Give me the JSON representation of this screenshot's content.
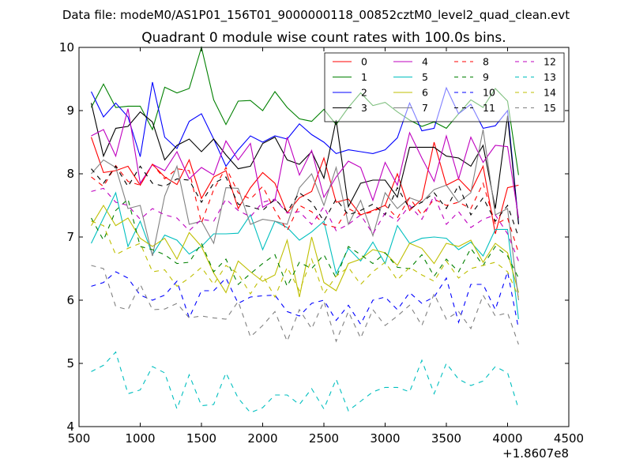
{
  "figure": {
    "suptitle": "Data file: modeM0/AS1P01_156T01_9000000118_00852cztM0_level2_quad_clean.evt"
  },
  "chart_data": {
    "type": "line",
    "title": "Quadrant 0 module wise count rates with 100.0s bins.",
    "xlabel": "",
    "ylabel": "",
    "x_offset_label": "+1.8607e8",
    "xlim": [
      500,
      4500
    ],
    "ylim": [
      4,
      10
    ],
    "x_ticks": [
      500,
      1000,
      1500,
      2000,
      2500,
      3000,
      3500,
      4000,
      4500
    ],
    "y_ticks": [
      4,
      5,
      6,
      7,
      8,
      9,
      10
    ],
    "grid": false,
    "legend": {
      "placement": "top-right",
      "columns": 4
    },
    "x": [
      600,
      700,
      800,
      900,
      1000,
      1100,
      1200,
      1300,
      1400,
      1500,
      1600,
      1700,
      1800,
      1900,
      2000,
      2100,
      2200,
      2300,
      2400,
      2500,
      2600,
      2700,
      2800,
      2900,
      3000,
      3100,
      3200,
      3300,
      3400,
      3500,
      3600,
      3700,
      3800,
      3900,
      4000,
      4090
    ],
    "series": [
      {
        "name": "0",
        "color": "#ff0000",
        "dash": "solid",
        "values": [
          8.58,
          8.02,
          8.05,
          8.12,
          7.82,
          8.15,
          7.95,
          7.83,
          8.22,
          7.61,
          7.95,
          8.05,
          7.45,
          7.78,
          8.02,
          7.85,
          7.38,
          7.62,
          7.72,
          8.25,
          7.55,
          7.6,
          7.35,
          7.42,
          7.5,
          8.0,
          7.42,
          7.6,
          8.5,
          7.82,
          7.92,
          7.72,
          8.12,
          7.05,
          7.78,
          7.82
        ]
      },
      {
        "name": "1",
        "color": "#008000",
        "dash": "solid",
        "values": [
          9.05,
          9.42,
          9.05,
          9.07,
          9.07,
          8.7,
          9.37,
          9.28,
          9.35,
          10.0,
          9.17,
          8.78,
          9.15,
          9.16,
          9.0,
          9.3,
          9.05,
          8.87,
          8.83,
          9.02,
          8.78,
          9.05,
          9.28,
          9.08,
          9.13,
          8.98,
          8.85,
          8.75,
          8.82,
          8.72,
          8.95,
          9.17,
          9.05,
          9.35,
          9.15,
          7.98
        ]
      },
      {
        "name": "2",
        "color": "#0000ff",
        "dash": "solid",
        "values": [
          9.3,
          8.9,
          9.12,
          8.9,
          8.27,
          9.45,
          8.58,
          8.4,
          8.83,
          8.95,
          8.55,
          8.12,
          8.38,
          8.6,
          8.5,
          8.6,
          8.55,
          8.79,
          8.62,
          8.5,
          8.32,
          8.38,
          8.35,
          8.32,
          8.38,
          8.57,
          9.12,
          8.68,
          8.72,
          9.36,
          8.95,
          9.1,
          8.72,
          8.76,
          9.0,
          7.22
        ]
      },
      {
        "name": "3",
        "color": "#000000",
        "dash": "solid",
        "values": [
          9.12,
          8.28,
          8.72,
          8.75,
          8.98,
          8.82,
          8.22,
          8.45,
          8.55,
          8.35,
          8.55,
          8.3,
          8.08,
          8.12,
          8.48,
          8.58,
          8.22,
          8.15,
          8.35,
          7.93,
          8.85,
          7.48,
          7.85,
          7.9,
          7.9,
          7.63,
          8.42,
          8.42,
          8.42,
          8.28,
          8.25,
          8.12,
          8.45,
          7.45,
          8.92,
          7.2
        ]
      },
      {
        "name": "4",
        "color": "#bf00bf",
        "dash": "solid",
        "values": [
          8.6,
          8.7,
          8.28,
          9.03,
          7.85,
          8.15,
          8.05,
          8.35,
          7.92,
          8.1,
          7.98,
          8.52,
          8.22,
          8.48,
          7.47,
          7.58,
          8.58,
          7.98,
          8.37,
          7.63,
          7.95,
          8.2,
          8.1,
          7.58,
          8.18,
          7.82,
          8.65,
          8.25,
          7.88,
          8.6,
          7.92,
          8.58,
          8.18,
          8.45,
          8.43,
          7.3
        ]
      },
      {
        "name": "5",
        "color": "#00bfbf",
        "dash": "solid",
        "values": [
          6.9,
          7.3,
          7.7,
          6.85,
          7.25,
          6.72,
          7.03,
          6.95,
          6.73,
          6.85,
          7.05,
          7.05,
          7.06,
          7.35,
          6.8,
          7.25,
          7.15,
          6.95,
          7.08,
          7.25,
          6.42,
          6.82,
          6.62,
          6.92,
          6.58,
          7.18,
          6.9,
          6.98,
          7.0,
          6.98,
          6.8,
          6.92,
          6.7,
          7.12,
          7.12,
          5.7
        ]
      },
      {
        "name": "6",
        "color": "#bfbf00",
        "dash": "solid",
        "values": [
          7.18,
          7.5,
          7.18,
          7.3,
          6.98,
          6.85,
          6.98,
          6.65,
          7.07,
          6.85,
          6.43,
          6.12,
          6.62,
          6.45,
          6.3,
          6.4,
          6.95,
          6.05,
          7.0,
          6.28,
          6.15,
          6.58,
          6.65,
          6.8,
          6.75,
          6.55,
          6.9,
          6.82,
          6.58,
          6.9,
          6.85,
          6.95,
          6.6,
          6.9,
          6.75,
          6.12
        ]
      },
      {
        "name": "7",
        "color": "#808080",
        "dash": "solid",
        "values": [
          8.0,
          8.22,
          8.1,
          7.45,
          7.5,
          6.7,
          7.65,
          8.12,
          7.2,
          7.25,
          6.9,
          7.78,
          7.77,
          7.2,
          7.28,
          7.25,
          7.2,
          7.78,
          8.0,
          7.5,
          8.1,
          7.2,
          7.58,
          7.02,
          7.7,
          7.45,
          7.62,
          7.55,
          7.75,
          7.82,
          7.55,
          7.7,
          8.7,
          7.35,
          7.45,
          6.0
        ]
      },
      {
        "name": "8",
        "color": "#ff0000",
        "dash": "dashed",
        "values": [
          7.95,
          7.8,
          8.13,
          7.88,
          7.82,
          8.15,
          7.92,
          8.08,
          8.05,
          7.22,
          7.75,
          8.1,
          7.7,
          7.6,
          7.8,
          7.42,
          7.1,
          7.5,
          7.4,
          7.2,
          7.15,
          7.45,
          7.35,
          7.4,
          7.5,
          7.3,
          7.62,
          7.35,
          7.6,
          7.5,
          7.55,
          7.45,
          7.85,
          7.2,
          7.3,
          6.75
        ]
      },
      {
        "name": "9",
        "color": "#008000",
        "dash": "dashed",
        "values": [
          7.3,
          6.95,
          7.42,
          7.6,
          6.85,
          6.8,
          6.72,
          6.58,
          6.6,
          6.9,
          6.45,
          6.65,
          6.25,
          6.42,
          6.58,
          6.72,
          6.22,
          6.6,
          6.5,
          6.72,
          6.35,
          6.85,
          6.72,
          6.58,
          6.75,
          6.52,
          6.5,
          6.72,
          6.38,
          6.65,
          6.45,
          6.82,
          6.55,
          6.85,
          6.7,
          6.35
        ]
      },
      {
        "name": "10",
        "color": "#0000ff",
        "dash": "dashed",
        "values": [
          6.22,
          6.28,
          6.45,
          6.35,
          6.08,
          6.0,
          6.08,
          6.3,
          5.72,
          6.15,
          6.15,
          6.35,
          5.95,
          6.05,
          6.07,
          6.08,
          5.82,
          5.75,
          5.95,
          6.0,
          5.68,
          5.92,
          5.62,
          6.0,
          6.05,
          5.85,
          6.12,
          5.95,
          6.05,
          6.35,
          5.65,
          6.25,
          6.25,
          5.85,
          6.45,
          5.55
        ]
      },
      {
        "name": "11",
        "color": "#000000",
        "dash": "dashed",
        "values": [
          8.08,
          7.85,
          8.12,
          7.8,
          8.12,
          7.85,
          7.8,
          7.92,
          7.9,
          7.55,
          7.85,
          7.95,
          7.52,
          7.48,
          7.42,
          7.6,
          7.4,
          7.7,
          7.55,
          7.25,
          7.6,
          7.35,
          7.42,
          7.52,
          7.35,
          7.78,
          7.45,
          7.55,
          7.7,
          7.45,
          7.82,
          7.35,
          7.62,
          7.25,
          7.5,
          7.0
        ]
      },
      {
        "name": "12",
        "color": "#bf00bf",
        "dash": "dashed",
        "values": [
          7.72,
          7.77,
          7.55,
          7.5,
          7.28,
          7.45,
          7.35,
          7.3,
          7.1,
          7.28,
          7.25,
          7.6,
          7.42,
          7.32,
          7.55,
          7.6,
          7.38,
          7.4,
          7.2,
          7.48,
          7.1,
          7.2,
          7.35,
          7.05,
          7.38,
          7.25,
          7.5,
          7.28,
          7.65,
          7.2,
          7.4,
          7.15,
          7.28,
          7.35,
          7.05,
          6.62
        ]
      },
      {
        "name": "13",
        "color": "#00bfbf",
        "dash": "dashed",
        "values": [
          4.87,
          4.97,
          5.18,
          4.52,
          4.58,
          4.95,
          4.85,
          4.28,
          4.82,
          4.33,
          4.35,
          4.85,
          4.45,
          4.22,
          4.3,
          4.5,
          4.5,
          4.35,
          4.6,
          4.28,
          4.75,
          4.25,
          4.4,
          4.55,
          4.62,
          4.62,
          4.55,
          5.05,
          4.52,
          5.0,
          4.75,
          4.65,
          4.72,
          4.95,
          4.85,
          4.28
        ]
      },
      {
        "name": "14",
        "color": "#bfbf00",
        "dash": "dashed",
        "values": [
          7.25,
          7.18,
          6.72,
          6.82,
          6.9,
          6.45,
          6.48,
          6.22,
          6.35,
          6.52,
          6.25,
          6.55,
          6.42,
          6.1,
          6.4,
          6.05,
          6.52,
          6.15,
          6.65,
          6.1,
          6.38,
          6.52,
          6.25,
          6.45,
          6.6,
          6.32,
          6.52,
          6.4,
          6.3,
          6.62,
          6.35,
          6.5,
          6.55,
          6.6,
          6.45,
          6.05
        ]
      },
      {
        "name": "15",
        "color": "#808080",
        "dash": "dashed",
        "values": [
          6.55,
          6.5,
          5.9,
          5.85,
          6.25,
          5.85,
          5.86,
          5.95,
          5.72,
          5.75,
          5.72,
          5.7,
          5.98,
          5.42,
          5.6,
          5.82,
          5.35,
          5.85,
          5.55,
          5.98,
          5.35,
          5.82,
          5.4,
          5.85,
          5.6,
          5.75,
          5.92,
          5.6,
          6.1,
          5.7,
          5.82,
          5.55,
          6.08,
          5.75,
          5.8,
          5.3
        ]
      }
    ]
  }
}
